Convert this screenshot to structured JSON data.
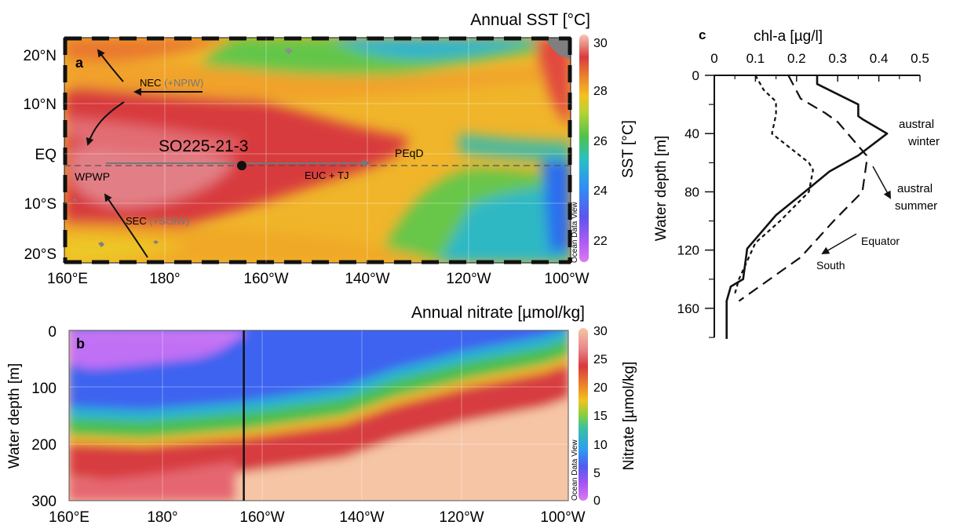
{
  "colors": {
    "warm_pool": "#d93a3e",
    "warm_pool_light": "#e87f86",
    "tropical": "#e9772f",
    "subtropical": "#f3c21f",
    "green": "#55c04a",
    "cyan": "#27b8ce",
    "blue": "#3a6cf2",
    "violet": "#a24ef3",
    "peach": "#f6c5a6",
    "land": "#7f7f7f"
  },
  "chart_data": [
    {
      "id": "a",
      "type": "heatmap",
      "panel_letter": "a",
      "title": "Annual SST [°C]",
      "x_ticks": [
        "160°E",
        "180°",
        "160°W",
        "140°W",
        "120°W",
        "100°W"
      ],
      "y_ticks": [
        "20°N",
        "10°N",
        "EQ",
        "10°S",
        "20°S"
      ],
      "xlim": [
        160,
        260
      ],
      "ylim": [
        -22,
        23
      ],
      "colorbar": {
        "label": "SST [°C]",
        "range": [
          21,
          30
        ],
        "ticks": [
          "22",
          "24",
          "26",
          "28",
          "30"
        ],
        "credit": "Ocean Data View"
      },
      "annotations": [
        {
          "text": "NEC",
          "extra": "(+NPIW)"
        },
        {
          "text": "SEC",
          "extra": "(+SOIW)"
        },
        {
          "text": "EUC + TJ",
          "extra": ""
        },
        {
          "text": "WPWP",
          "extra": ""
        },
        {
          "text": "PEqD",
          "extra": ""
        }
      ],
      "site": {
        "label": "SO225-21-3",
        "lon": 195,
        "lat": -2
      }
    },
    {
      "id": "b",
      "type": "heatmap",
      "panel_letter": "b",
      "title": "Annual nitrate [µmol/kg]",
      "x_ticks": [
        "160°E",
        "180°",
        "160°W",
        "140°W",
        "120°W",
        "100°W"
      ],
      "y_ticks": [
        "0",
        "100",
        "200",
        "300"
      ],
      "ylabel": "Water depth [m]",
      "xlim": [
        160,
        260
      ],
      "ylim": [
        300,
        0
      ],
      "site_lon": 195,
      "nitracline_15umol": [
        {
          "lon": 160,
          "depth": 185
        },
        {
          "lon": 175,
          "depth": 190
        },
        {
          "lon": 195,
          "depth": 175
        },
        {
          "lon": 215,
          "depth": 150
        },
        {
          "lon": 225,
          "depth": 118
        },
        {
          "lon": 240,
          "depth": 85
        },
        {
          "lon": 255,
          "depth": 60
        },
        {
          "lon": 260,
          "depth": 45
        }
      ],
      "colorbar": {
        "label": "Nitrate [µmol/kg]",
        "range": [
          0,
          30
        ],
        "ticks": [
          "0",
          "5",
          "10",
          "15",
          "20",
          "25",
          "30"
        ],
        "credit": "Ocean Data View"
      }
    },
    {
      "id": "c",
      "type": "line",
      "panel_letter": "c",
      "xlabel": "chl-a [µg/l]",
      "ylabel": "Water depth [m]",
      "x_ticks": [
        "0",
        "0.1",
        "0.2",
        "0.3",
        "0.4",
        "0.5"
      ],
      "y_ticks": [
        "0",
        "40",
        "80",
        "120",
        "160"
      ],
      "xlim": [
        0,
        0.5
      ],
      "ylim": [
        180,
        0
      ],
      "series": [
        {
          "name": "austral winter",
          "style": "solid",
          "x": [
            0.25,
            0.25,
            0.35,
            0.35,
            0.36,
            0.42,
            0.35,
            0.28,
            0.22,
            0.15,
            0.08,
            0.07,
            0.04,
            0.03,
            0.03,
            0.03
          ],
          "y": [
            0,
            6,
            20,
            28,
            30,
            40,
            55,
            66,
            80,
            96,
            119,
            140,
            145,
            155,
            160,
            181
          ]
        },
        {
          "name": "austral summer",
          "style": "dashed",
          "x": [
            0.18,
            0.21,
            0.27,
            0.3,
            0.37,
            0.37,
            0.36,
            0.29,
            0.21,
            0.06
          ],
          "y": [
            0,
            16,
            26,
            32,
            55,
            60,
            80,
            100,
            125,
            155
          ]
        },
        {
          "name": "Equator / South",
          "style": "dotted",
          "x": [
            0.1,
            0.12,
            0.15,
            0.15,
            0.14,
            0.23,
            0.24,
            0.23,
            0.16,
            0.1,
            0.06,
            0.05
          ],
          "y": [
            0,
            10,
            18,
            27,
            40,
            60,
            65,
            80,
            100,
            115,
            140,
            150
          ]
        }
      ],
      "annotations": [
        {
          "text": "austral",
          "text2": "winter"
        },
        {
          "text": "austral",
          "text2": "summer"
        },
        {
          "text": "Equator",
          "text2": "South"
        }
      ]
    }
  ]
}
